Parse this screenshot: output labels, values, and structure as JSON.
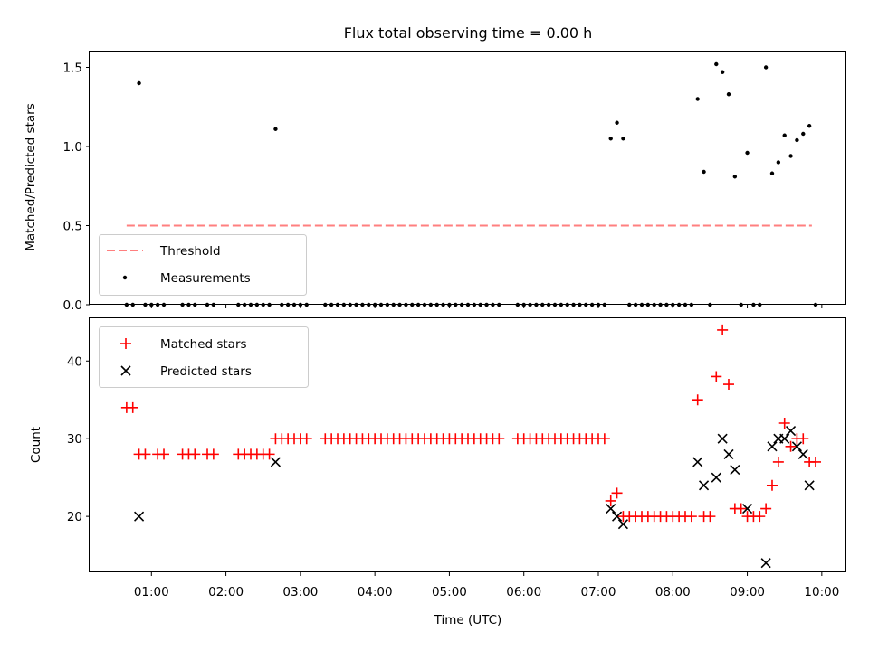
{
  "chart_data": [
    {
      "type": "scatter",
      "title": "Flux total observing time = 0.00 h",
      "xlabel": "",
      "ylabel": "Matched/Predicted stars",
      "xlim_hours": [
        0.17,
        10.33
      ],
      "ylim": [
        0.0,
        1.6
      ],
      "yticks": [
        0.0,
        0.5,
        1.0,
        1.5
      ],
      "ytick_labels": [
        "0.0",
        "0.5",
        "1.0",
        "1.5"
      ],
      "grid": false,
      "legend_position": "bottom-left",
      "threshold": {
        "name": "Threshold",
        "color": "#ff7f7f",
        "y": 0.5,
        "x_range": [
          "00:40",
          "09:52"
        ]
      },
      "series": [
        {
          "name": "Measurements",
          "color": "#000000",
          "points": [
            [
              "00:40",
              0
            ],
            [
              "00:45",
              0
            ],
            [
              "00:50",
              1.4
            ],
            [
              "00:55",
              0
            ],
            [
              "01:00",
              0
            ],
            [
              "01:05",
              0
            ],
            [
              "01:10",
              0
            ],
            [
              "01:25",
              0
            ],
            [
              "01:30",
              0
            ],
            [
              "01:35",
              0
            ],
            [
              "01:45",
              0
            ],
            [
              "01:50",
              0
            ],
            [
              "02:10",
              0
            ],
            [
              "02:15",
              0
            ],
            [
              "02:20",
              0
            ],
            [
              "02:25",
              0
            ],
            [
              "02:30",
              0
            ],
            [
              "02:35",
              0
            ],
            [
              "02:40",
              1.11
            ],
            [
              "02:45",
              0
            ],
            [
              "02:50",
              0
            ],
            [
              "02:55",
              0
            ],
            [
              "03:00",
              0
            ],
            [
              "03:05",
              0
            ],
            [
              "03:20",
              0
            ],
            [
              "03:25",
              0
            ],
            [
              "03:30",
              0
            ],
            [
              "03:35",
              0
            ],
            [
              "03:40",
              0
            ],
            [
              "03:45",
              0
            ],
            [
              "03:50",
              0
            ],
            [
              "03:55",
              0
            ],
            [
              "04:00",
              0
            ],
            [
              "04:05",
              0
            ],
            [
              "04:10",
              0
            ],
            [
              "04:15",
              0
            ],
            [
              "04:20",
              0
            ],
            [
              "04:25",
              0
            ],
            [
              "04:30",
              0
            ],
            [
              "04:35",
              0
            ],
            [
              "04:40",
              0
            ],
            [
              "04:45",
              0
            ],
            [
              "04:50",
              0
            ],
            [
              "04:55",
              0
            ],
            [
              "05:00",
              0
            ],
            [
              "05:05",
              0
            ],
            [
              "05:10",
              0
            ],
            [
              "05:15",
              0
            ],
            [
              "05:20",
              0
            ],
            [
              "05:25",
              0
            ],
            [
              "05:30",
              0
            ],
            [
              "05:35",
              0
            ],
            [
              "05:40",
              0
            ],
            [
              "05:55",
              0
            ],
            [
              "06:00",
              0
            ],
            [
              "06:05",
              0
            ],
            [
              "06:10",
              0
            ],
            [
              "06:15",
              0
            ],
            [
              "06:20",
              0
            ],
            [
              "06:25",
              0
            ],
            [
              "06:30",
              0
            ],
            [
              "06:35",
              0
            ],
            [
              "06:40",
              0
            ],
            [
              "06:45",
              0
            ],
            [
              "06:50",
              0
            ],
            [
              "06:55",
              0
            ],
            [
              "07:00",
              0
            ],
            [
              "07:05",
              0
            ],
            [
              "07:10",
              1.05
            ],
            [
              "07:15",
              1.15
            ],
            [
              "07:20",
              1.05
            ],
            [
              "07:25",
              0
            ],
            [
              "07:30",
              0
            ],
            [
              "07:35",
              0
            ],
            [
              "07:40",
              0
            ],
            [
              "07:45",
              0
            ],
            [
              "07:50",
              0
            ],
            [
              "07:55",
              0
            ],
            [
              "08:00",
              0
            ],
            [
              "08:05",
              0
            ],
            [
              "08:10",
              0
            ],
            [
              "08:15",
              0
            ],
            [
              "08:20",
              1.3
            ],
            [
              "08:25",
              0.84
            ],
            [
              "08:30",
              0
            ],
            [
              "08:35",
              1.52
            ],
            [
              "08:40",
              1.47
            ],
            [
              "08:45",
              1.33
            ],
            [
              "08:50",
              0.81
            ],
            [
              "08:55",
              0
            ],
            [
              "09:00",
              0.96
            ],
            [
              "09:05",
              0
            ],
            [
              "09:10",
              0
            ],
            [
              "09:15",
              1.5
            ],
            [
              "09:20",
              0.83
            ],
            [
              "09:25",
              0.9
            ],
            [
              "09:30",
              1.07
            ],
            [
              "09:35",
              0.94
            ],
            [
              "09:40",
              1.04
            ],
            [
              "09:45",
              1.08
            ],
            [
              "09:50",
              1.13
            ],
            [
              "09:55",
              0
            ]
          ]
        }
      ]
    },
    {
      "type": "scatter",
      "title": "",
      "xlabel": "Time (UTC)",
      "ylabel": "Count",
      "xlim_hours": [
        0.17,
        10.33
      ],
      "ylim": [
        12.8,
        45.5
      ],
      "yticks": [
        20,
        30,
        40
      ],
      "ytick_labels": [
        "20",
        "30",
        "40"
      ],
      "xticks": [
        "01:00",
        "02:00",
        "03:00",
        "04:00",
        "05:00",
        "06:00",
        "07:00",
        "08:00",
        "09:00",
        "10:00"
      ],
      "grid": false,
      "legend_position": "top-left",
      "series": [
        {
          "name": "Matched stars",
          "color": "#ff0000",
          "marker": "plus",
          "points": [
            [
              "00:40",
              34
            ],
            [
              "00:45",
              34
            ],
            [
              "00:50",
              28
            ],
            [
              "00:55",
              28
            ],
            [
              "01:05",
              28
            ],
            [
              "01:10",
              28
            ],
            [
              "01:25",
              28
            ],
            [
              "01:30",
              28
            ],
            [
              "01:35",
              28
            ],
            [
              "01:45",
              28
            ],
            [
              "01:50",
              28
            ],
            [
              "02:10",
              28
            ],
            [
              "02:15",
              28
            ],
            [
              "02:20",
              28
            ],
            [
              "02:25",
              28
            ],
            [
              "02:30",
              28
            ],
            [
              "02:35",
              28
            ],
            [
              "02:40",
              30
            ],
            [
              "02:45",
              30
            ],
            [
              "02:50",
              30
            ],
            [
              "02:55",
              30
            ],
            [
              "03:00",
              30
            ],
            [
              "03:05",
              30
            ],
            [
              "03:20",
              30
            ],
            [
              "03:25",
              30
            ],
            [
              "03:30",
              30
            ],
            [
              "03:35",
              30
            ],
            [
              "03:40",
              30
            ],
            [
              "03:45",
              30
            ],
            [
              "03:50",
              30
            ],
            [
              "03:55",
              30
            ],
            [
              "04:00",
              30
            ],
            [
              "04:05",
              30
            ],
            [
              "04:10",
              30
            ],
            [
              "04:15",
              30
            ],
            [
              "04:20",
              30
            ],
            [
              "04:25",
              30
            ],
            [
              "04:30",
              30
            ],
            [
              "04:35",
              30
            ],
            [
              "04:40",
              30
            ],
            [
              "04:45",
              30
            ],
            [
              "04:50",
              30
            ],
            [
              "04:55",
              30
            ],
            [
              "05:00",
              30
            ],
            [
              "05:05",
              30
            ],
            [
              "05:10",
              30
            ],
            [
              "05:15",
              30
            ],
            [
              "05:20",
              30
            ],
            [
              "05:25",
              30
            ],
            [
              "05:30",
              30
            ],
            [
              "05:35",
              30
            ],
            [
              "05:40",
              30
            ],
            [
              "05:55",
              30
            ],
            [
              "06:00",
              30
            ],
            [
              "06:05",
              30
            ],
            [
              "06:10",
              30
            ],
            [
              "06:15",
              30
            ],
            [
              "06:20",
              30
            ],
            [
              "06:25",
              30
            ],
            [
              "06:30",
              30
            ],
            [
              "06:35",
              30
            ],
            [
              "06:40",
              30
            ],
            [
              "06:45",
              30
            ],
            [
              "06:50",
              30
            ],
            [
              "06:55",
              30
            ],
            [
              "07:00",
              30
            ],
            [
              "07:05",
              30
            ],
            [
              "07:10",
              22
            ],
            [
              "07:15",
              23
            ],
            [
              "07:20",
              20
            ],
            [
              "07:25",
              20
            ],
            [
              "07:30",
              20
            ],
            [
              "07:35",
              20
            ],
            [
              "07:40",
              20
            ],
            [
              "07:45",
              20
            ],
            [
              "07:50",
              20
            ],
            [
              "07:55",
              20
            ],
            [
              "08:00",
              20
            ],
            [
              "08:05",
              20
            ],
            [
              "08:10",
              20
            ],
            [
              "08:15",
              20
            ],
            [
              "08:20",
              35
            ],
            [
              "08:25",
              20
            ],
            [
              "08:30",
              20
            ],
            [
              "08:35",
              38
            ],
            [
              "08:40",
              44
            ],
            [
              "08:45",
              37
            ],
            [
              "08:50",
              21
            ],
            [
              "08:55",
              21
            ],
            [
              "09:00",
              20
            ],
            [
              "09:05",
              20
            ],
            [
              "09:10",
              20
            ],
            [
              "09:15",
              21
            ],
            [
              "09:20",
              24
            ],
            [
              "09:25",
              27
            ],
            [
              "09:30",
              32
            ],
            [
              "09:35",
              29
            ],
            [
              "09:40",
              30
            ],
            [
              "09:45",
              30
            ],
            [
              "09:50",
              27
            ],
            [
              "09:55",
              27
            ]
          ]
        },
        {
          "name": "Predicted stars",
          "color": "#000000",
          "marker": "x",
          "points": [
            [
              "00:50",
              20
            ],
            [
              "02:40",
              27
            ],
            [
              "07:10",
              21
            ],
            [
              "07:15",
              20
            ],
            [
              "07:20",
              19
            ],
            [
              "08:20",
              27
            ],
            [
              "08:25",
              24
            ],
            [
              "08:35",
              25
            ],
            [
              "08:40",
              30
            ],
            [
              "08:45",
              28
            ],
            [
              "08:50",
              26
            ],
            [
              "09:00",
              21
            ],
            [
              "09:15",
              14
            ],
            [
              "09:20",
              29
            ],
            [
              "09:25",
              30
            ],
            [
              "09:30",
              30
            ],
            [
              "09:35",
              31
            ],
            [
              "09:40",
              29
            ],
            [
              "09:45",
              28
            ],
            [
              "09:50",
              24
            ]
          ]
        }
      ]
    }
  ]
}
